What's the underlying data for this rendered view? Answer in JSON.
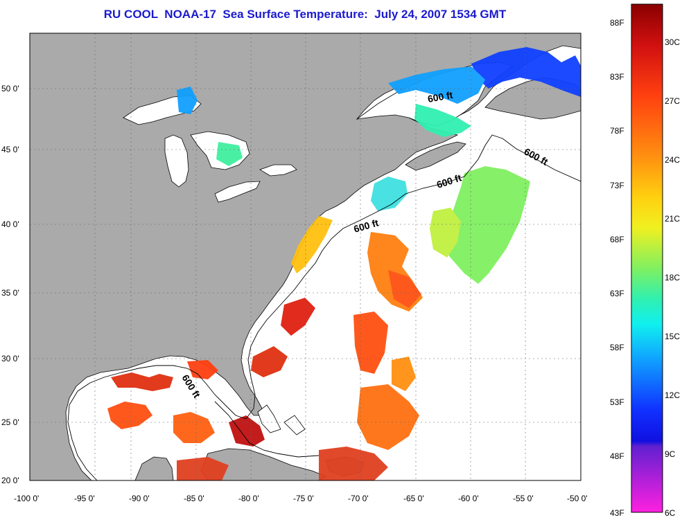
{
  "title": "RU COOL  NOAA-17  Sea Surface Temperature:  July 24, 2007 1534 GMT",
  "axes": {
    "lat_labels": [
      "50 0'",
      "45 0'",
      "40 0'",
      "35 0'",
      "30 0'",
      "25 0'",
      "20 0'"
    ],
    "lon_labels": [
      "-100 0'",
      "-95 0'",
      "-90 0'",
      "-85 0'",
      "-80 0'",
      "-75 0'",
      "-70 0'",
      "-65 0'",
      "-60 0'",
      "-55 0'",
      "-50 0'"
    ]
  },
  "isobath_label": "600 ft",
  "colorbar": {
    "fahrenheit_labels": [
      "88F",
      "83F",
      "78F",
      "73F",
      "68F",
      "63F",
      "58F",
      "53F",
      "48F",
      "43F"
    ],
    "celsius_labels": [
      "30C",
      "27C",
      "24C",
      "21C",
      "18C",
      "15C",
      "12C",
      "9C",
      "6C"
    ],
    "colors": [
      "#a00000",
      "#e01010",
      "#ff4010",
      "#ff8010",
      "#ffc010",
      "#f0f020",
      "#a0f040",
      "#40f0a0",
      "#10f0f0",
      "#10a0ff",
      "#1040ff",
      "#1010e0",
      "#9020d0",
      "#ff20e0"
    ]
  },
  "colors": {
    "land": "#aaaaaa",
    "ocean": "#ffffff",
    "title": "#1a1acc"
  }
}
